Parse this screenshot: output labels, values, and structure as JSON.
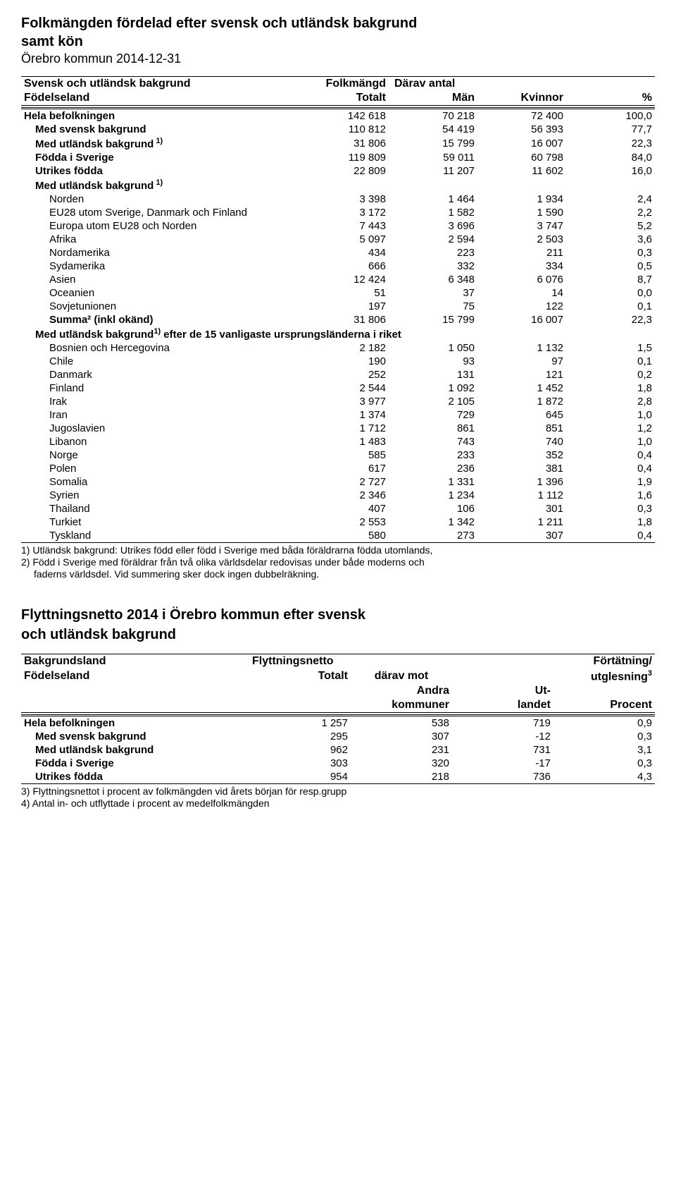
{
  "title_line1": "Folkmängden fördelad efter svensk och utländsk bakgrund",
  "title_line2": "samt kön",
  "title_date": "Örebro kommun  2014-12-31",
  "hdr": {
    "col1a": "Svensk och utländsk bakgrund",
    "col1b": "Födelseland",
    "col2a": "Folkmängd",
    "col2b": "Totalt",
    "col3": "Därav antal",
    "col3a": "Män",
    "col4": "Kvinnor",
    "col5": "%"
  },
  "rows_main": [
    {
      "label": "Hela befolkningen",
      "bold": true,
      "indent": 0,
      "v": [
        "142 618",
        "70 218",
        "72 400",
        "100,0"
      ]
    },
    {
      "label": "Med svensk bakgrund",
      "bold": true,
      "indent": 1,
      "v": [
        "110 812",
        "54 419",
        "56 393",
        "77,7"
      ]
    },
    {
      "label": "Med utländsk bakgrund",
      "sup": "1)",
      "bold": true,
      "indent": 1,
      "v": [
        "31 806",
        "15 799",
        "16 007",
        "22,3"
      ]
    },
    {
      "label": "Födda i Sverige",
      "bold": true,
      "indent": 1,
      "v": [
        "119 809",
        "59 011",
        "60 798",
        "84,0"
      ]
    },
    {
      "label": "Utrikes födda",
      "bold": true,
      "indent": 1,
      "v": [
        "22 809",
        "11 207",
        "11 602",
        "16,0"
      ]
    },
    {
      "label": "Med utländsk bakgrund",
      "sup": "1)",
      "bold": true,
      "indent": 1,
      "v": [
        "",
        "",
        "",
        ""
      ]
    },
    {
      "label": "Norden",
      "bold": false,
      "indent": 2,
      "v": [
        "3 398",
        "1 464",
        "1 934",
        "2,4"
      ]
    },
    {
      "label": "EU28 utom Sverige, Danmark och Finland",
      "bold": false,
      "indent": 2,
      "v": [
        "3 172",
        "1 582",
        "1 590",
        "2,2"
      ]
    },
    {
      "label": "Europa utom EU28 och Norden",
      "bold": false,
      "indent": 2,
      "v": [
        "7 443",
        "3 696",
        "3 747",
        "5,2"
      ]
    },
    {
      "label": "Afrika",
      "bold": false,
      "indent": 2,
      "v": [
        "5 097",
        "2 594",
        "2 503",
        "3,6"
      ]
    },
    {
      "label": "Nordamerika",
      "bold": false,
      "indent": 2,
      "v": [
        "434",
        "223",
        "211",
        "0,3"
      ]
    },
    {
      "label": "Sydamerika",
      "bold": false,
      "indent": 2,
      "v": [
        "666",
        "332",
        "334",
        "0,5"
      ]
    },
    {
      "label": "Asien",
      "bold": false,
      "indent": 2,
      "v": [
        "12 424",
        "6 348",
        "6 076",
        "8,7"
      ]
    },
    {
      "label": "Oceanien",
      "bold": false,
      "indent": 2,
      "v": [
        "51",
        "37",
        "14",
        "0,0"
      ]
    },
    {
      "label": "Sovjetunionen",
      "bold": false,
      "indent": 2,
      "v": [
        "197",
        "75",
        "122",
        "0,1"
      ]
    },
    {
      "label": "Summa² (inkl okänd)",
      "bold": true,
      "indent": 2,
      "v": [
        "31 806",
        "15 799",
        "16 007",
        "22,3"
      ]
    }
  ],
  "section_label": {
    "text": "Med utländsk bakgrund",
    "sup": "1)",
    "after": " efter de 15 vanligaste ursprungsländerna i riket"
  },
  "rows_countries": [
    {
      "label": "Bosnien och Hercegovina",
      "v": [
        "2 182",
        "1 050",
        "1 132",
        "1,5"
      ]
    },
    {
      "label": "Chile",
      "v": [
        "190",
        "93",
        "97",
        "0,1"
      ]
    },
    {
      "label": "Danmark",
      "v": [
        "252",
        "131",
        "121",
        "0,2"
      ]
    },
    {
      "label": "Finland",
      "v": [
        "2 544",
        "1 092",
        "1 452",
        "1,8"
      ]
    },
    {
      "label": "Irak",
      "v": [
        "3 977",
        "2 105",
        "1 872",
        "2,8"
      ]
    },
    {
      "label": "Iran",
      "v": [
        "1 374",
        "729",
        "645",
        "1,0"
      ]
    },
    {
      "label": "Jugoslavien",
      "v": [
        "1 712",
        "861",
        "851",
        "1,2"
      ]
    },
    {
      "label": "Libanon",
      "v": [
        "1 483",
        "743",
        "740",
        "1,0"
      ]
    },
    {
      "label": "Norge",
      "v": [
        "585",
        "233",
        "352",
        "0,4"
      ]
    },
    {
      "label": "Polen",
      "v": [
        "617",
        "236",
        "381",
        "0,4"
      ]
    },
    {
      "label": "Somalia",
      "v": [
        "2 727",
        "1 331",
        "1 396",
        "1,9"
      ]
    },
    {
      "label": "Syrien",
      "v": [
        "2 346",
        "1 234",
        "1 112",
        "1,6"
      ]
    },
    {
      "label": "Thailand",
      "v": [
        "407",
        "106",
        "301",
        "0,3"
      ]
    },
    {
      "label": "Turkiet",
      "v": [
        "2 553",
        "1 342",
        "1 211",
        "1,8"
      ]
    },
    {
      "label": "Tyskland",
      "v": [
        "580",
        "273",
        "307",
        "0,4"
      ]
    }
  ],
  "footnotes1": [
    "1) Utländsk bakgrund: Utrikes född eller född i Sverige med båda föräldrarna födda utomlands,",
    "2) Född i Sverige med föräldrar från två olika världsdelar redovisas under både moderns och",
    "faderns världsdel. Vid summering sker dock ingen dubbelräkning."
  ],
  "section2": {
    "title1": "Flyttningsnetto 2014 i Örebro kommun efter svensk",
    "title2": "och utländsk bakgrund",
    "hdr": {
      "col1a": "Bakgrundsland",
      "col1b": "Födelseland",
      "col2a": "Flyttningsnetto",
      "col2b": "Totalt",
      "col3a": "därav mot",
      "col3b": "Andra",
      "col3c": "kommuner",
      "col4a": "Ut-",
      "col4b": "landet",
      "col5a": "Förtätning/",
      "col5b": "utglesning",
      "col5b_sup": "3",
      "col5c": "Procent"
    },
    "rows": [
      {
        "label": "Hela befolkningen",
        "bold": true,
        "indent": 0,
        "v": [
          "1 257",
          "538",
          "719",
          "0,9"
        ]
      },
      {
        "label": "Med svensk bakgrund",
        "bold": true,
        "indent": 1,
        "v": [
          "295",
          "307",
          "-12",
          "0,3"
        ]
      },
      {
        "label": "Med utländsk bakgrund",
        "bold": true,
        "indent": 1,
        "v": [
          "962",
          "231",
          "731",
          "3,1"
        ]
      },
      {
        "label": "Födda i Sverige",
        "bold": true,
        "indent": 1,
        "v": [
          "303",
          "320",
          "-17",
          "0,3"
        ]
      },
      {
        "label": "Utrikes födda",
        "bold": true,
        "indent": 1,
        "v": [
          "954",
          "218",
          "736",
          "4,3"
        ]
      }
    ],
    "footnotes": [
      "3) Flyttningsnettot  i procent av folkmängden  vid årets början för resp.grupp",
      "4) Antal in- och utflyttade i procent av medelfolkmängden"
    ]
  }
}
